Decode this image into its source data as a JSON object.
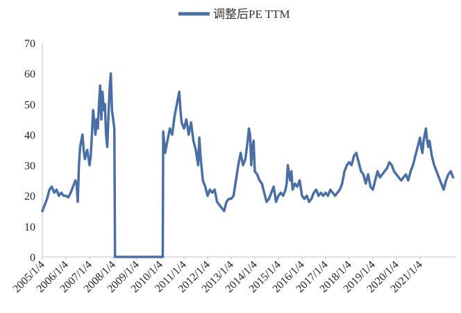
{
  "chart_data": {
    "type": "line",
    "title": "",
    "xlabel": "",
    "ylabel": "",
    "ylim": [
      0,
      70
    ],
    "yticks": [
      0,
      10,
      20,
      30,
      40,
      50,
      60,
      70
    ],
    "xticks": [
      "2005/1/4",
      "2006/1/4",
      "2007/1/4",
      "2008/1/4",
      "2009/1/4",
      "2010/1/4",
      "2011/1/4",
      "2012/1/4",
      "2013/1/4",
      "2014/1/4",
      "2015/1/4",
      "2016/1/4",
      "2017/1/4",
      "2018/1/4",
      "2019/1/4",
      "2020/1/4",
      "2021/1/4"
    ],
    "grid": false,
    "legend": "top-center",
    "series": [
      {
        "name": "调整后PE TTM",
        "color": "#4a6fa5",
        "points": [
          [
            2005.0,
            15
          ],
          [
            2005.1,
            17
          ],
          [
            2005.2,
            19
          ],
          [
            2005.3,
            22
          ],
          [
            2005.4,
            23
          ],
          [
            2005.5,
            21
          ],
          [
            2005.6,
            22
          ],
          [
            2005.7,
            20
          ],
          [
            2005.8,
            21
          ],
          [
            2005.9,
            20
          ],
          [
            2006.0,
            20
          ],
          [
            2006.1,
            19.5
          ],
          [
            2006.2,
            21
          ],
          [
            2006.3,
            23
          ],
          [
            2006.4,
            25
          ],
          [
            2006.45,
            24
          ],
          [
            2006.5,
            18
          ],
          [
            2006.55,
            30
          ],
          [
            2006.6,
            36
          ],
          [
            2006.7,
            40
          ],
          [
            2006.75,
            35
          ],
          [
            2006.8,
            32
          ],
          [
            2006.9,
            35
          ],
          [
            2007.0,
            30
          ],
          [
            2007.05,
            33
          ],
          [
            2007.1,
            40
          ],
          [
            2007.15,
            48
          ],
          [
            2007.2,
            44
          ],
          [
            2007.25,
            40
          ],
          [
            2007.3,
            45
          ],
          [
            2007.35,
            42
          ],
          [
            2007.4,
            50
          ],
          [
            2007.45,
            56
          ],
          [
            2007.5,
            45
          ],
          [
            2007.55,
            54
          ],
          [
            2007.6,
            48
          ],
          [
            2007.65,
            50
          ],
          [
            2007.7,
            40
          ],
          [
            2007.75,
            36
          ],
          [
            2007.8,
            46
          ],
          [
            2007.85,
            55
          ],
          [
            2007.9,
            60
          ],
          [
            2007.95,
            48
          ],
          [
            2008.0,
            45
          ],
          [
            2008.05,
            42
          ],
          [
            2008.08,
            0
          ],
          [
            2009.0,
            0
          ],
          [
            2010.0,
            0
          ],
          [
            2010.1,
            0
          ],
          [
            2010.12,
            41
          ],
          [
            2010.2,
            34
          ],
          [
            2010.3,
            38
          ],
          [
            2010.4,
            42
          ],
          [
            2010.5,
            40
          ],
          [
            2010.6,
            46
          ],
          [
            2010.7,
            50
          ],
          [
            2010.8,
            54
          ],
          [
            2010.85,
            48
          ],
          [
            2010.9,
            44
          ],
          [
            2011.0,
            42
          ],
          [
            2011.1,
            45
          ],
          [
            2011.2,
            40
          ],
          [
            2011.3,
            44
          ],
          [
            2011.4,
            38
          ],
          [
            2011.5,
            35
          ],
          [
            2011.6,
            30
          ],
          [
            2011.65,
            39
          ],
          [
            2011.7,
            33
          ],
          [
            2011.8,
            25
          ],
          [
            2011.9,
            23
          ],
          [
            2012.0,
            20
          ],
          [
            2012.1,
            22
          ],
          [
            2012.2,
            21
          ],
          [
            2012.3,
            22
          ],
          [
            2012.4,
            18
          ],
          [
            2012.5,
            17
          ],
          [
            2012.6,
            16
          ],
          [
            2012.7,
            15
          ],
          [
            2012.8,
            18
          ],
          [
            2012.9,
            19
          ],
          [
            2013.0,
            19
          ],
          [
            2013.1,
            20
          ],
          [
            2013.2,
            25
          ],
          [
            2013.3,
            30
          ],
          [
            2013.4,
            34
          ],
          [
            2013.5,
            30
          ],
          [
            2013.6,
            32
          ],
          [
            2013.7,
            38
          ],
          [
            2013.75,
            42
          ],
          [
            2013.8,
            40
          ],
          [
            2013.85,
            30
          ],
          [
            2013.9,
            36
          ],
          [
            2013.95,
            38
          ],
          [
            2014.0,
            28
          ],
          [
            2014.1,
            27
          ],
          [
            2014.2,
            25
          ],
          [
            2014.3,
            24
          ],
          [
            2014.4,
            21
          ],
          [
            2014.5,
            18
          ],
          [
            2014.6,
            19
          ],
          [
            2014.7,
            21
          ],
          [
            2014.8,
            23
          ],
          [
            2014.9,
            18
          ],
          [
            2015.0,
            20
          ],
          [
            2015.1,
            21
          ],
          [
            2015.2,
            20
          ],
          [
            2015.3,
            22
          ],
          [
            2015.35,
            24
          ],
          [
            2015.4,
            30
          ],
          [
            2015.45,
            27
          ],
          [
            2015.5,
            25
          ],
          [
            2015.55,
            28
          ],
          [
            2015.6,
            22
          ],
          [
            2015.7,
            24
          ],
          [
            2015.8,
            23
          ],
          [
            2015.9,
            25
          ],
          [
            2016.0,
            20
          ],
          [
            2016.1,
            19
          ],
          [
            2016.2,
            20
          ],
          [
            2016.3,
            18
          ],
          [
            2016.4,
            19
          ],
          [
            2016.5,
            21
          ],
          [
            2016.6,
            22
          ],
          [
            2016.7,
            20
          ],
          [
            2016.8,
            21
          ],
          [
            2016.9,
            20
          ],
          [
            2017.0,
            21
          ],
          [
            2017.1,
            20
          ],
          [
            2017.2,
            22
          ],
          [
            2017.3,
            21
          ],
          [
            2017.4,
            20
          ],
          [
            2017.5,
            21
          ],
          [
            2017.6,
            22
          ],
          [
            2017.7,
            24
          ],
          [
            2017.8,
            28
          ],
          [
            2017.9,
            30
          ],
          [
            2018.0,
            31
          ],
          [
            2018.1,
            30
          ],
          [
            2018.2,
            33
          ],
          [
            2018.3,
            34
          ],
          [
            2018.4,
            31
          ],
          [
            2018.5,
            28
          ],
          [
            2018.6,
            27
          ],
          [
            2018.7,
            24
          ],
          [
            2018.8,
            27
          ],
          [
            2018.9,
            23
          ],
          [
            2019.0,
            22
          ],
          [
            2019.1,
            25
          ],
          [
            2019.2,
            28
          ],
          [
            2019.3,
            26
          ],
          [
            2019.4,
            27
          ],
          [
            2019.5,
            28
          ],
          [
            2019.6,
            29
          ],
          [
            2019.7,
            31
          ],
          [
            2019.8,
            30
          ],
          [
            2019.9,
            28
          ],
          [
            2020.0,
            27
          ],
          [
            2020.1,
            26
          ],
          [
            2020.2,
            25
          ],
          [
            2020.3,
            26
          ],
          [
            2020.4,
            27
          ],
          [
            2020.5,
            25
          ],
          [
            2020.6,
            28
          ],
          [
            2020.7,
            30
          ],
          [
            2020.8,
            33
          ],
          [
            2020.9,
            36
          ],
          [
            2021.0,
            39
          ],
          [
            2021.05,
            36
          ],
          [
            2021.1,
            34
          ],
          [
            2021.15,
            38
          ],
          [
            2021.2,
            40
          ],
          [
            2021.25,
            42
          ],
          [
            2021.3,
            38
          ],
          [
            2021.35,
            36
          ],
          [
            2021.4,
            38
          ],
          [
            2021.5,
            33
          ],
          [
            2021.6,
            30
          ],
          [
            2021.7,
            28
          ],
          [
            2021.8,
            26
          ],
          [
            2021.9,
            24
          ],
          [
            2022.0,
            22
          ],
          [
            2022.1,
            25
          ],
          [
            2022.2,
            27
          ],
          [
            2022.3,
            28
          ],
          [
            2022.35,
            27
          ],
          [
            2022.4,
            26
          ]
        ]
      }
    ]
  }
}
